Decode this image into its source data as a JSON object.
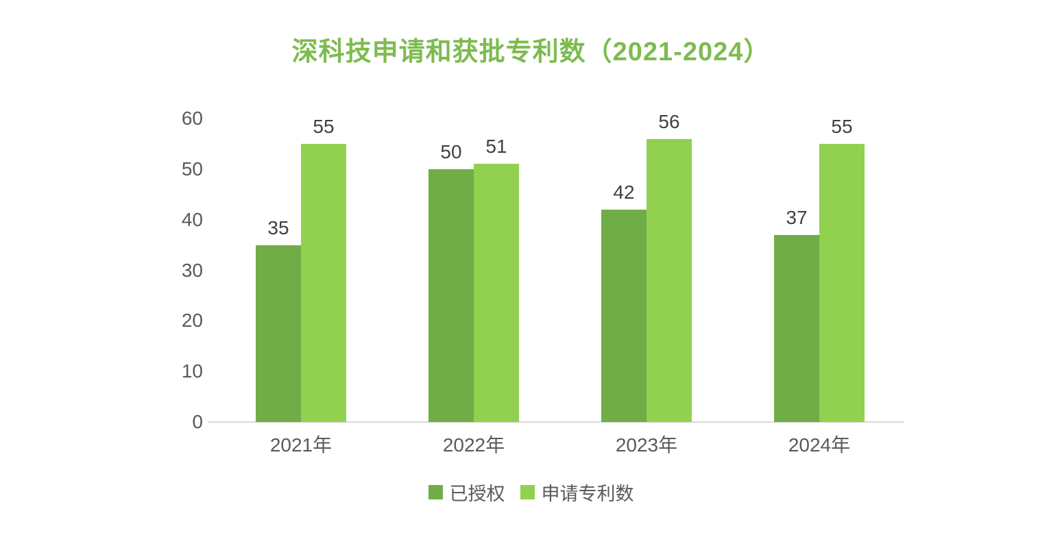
{
  "chart_data": {
    "type": "bar",
    "title": "深科技申请和获批专利数（2021-2024）",
    "categories": [
      "2021年",
      "2022年",
      "2023年",
      "2024年"
    ],
    "series": [
      {
        "name": "已授权",
        "color": "#70AD47",
        "values": [
          35,
          50,
          42,
          37
        ]
      },
      {
        "name": "申请专利数",
        "color": "#92D050",
        "values": [
          55,
          51,
          56,
          55
        ]
      }
    ],
    "ylim": [
      0,
      60
    ],
    "yticks": [
      0,
      10,
      20,
      30,
      40,
      50,
      60
    ],
    "grid": false,
    "data_labels": true,
    "legend_position": "bottom"
  },
  "colors": {
    "title": "#7DBB4F",
    "axis_text": "#595959",
    "data_label": "#404040",
    "axis_line": "#D9D9D9",
    "background": "#FFFFFF"
  }
}
